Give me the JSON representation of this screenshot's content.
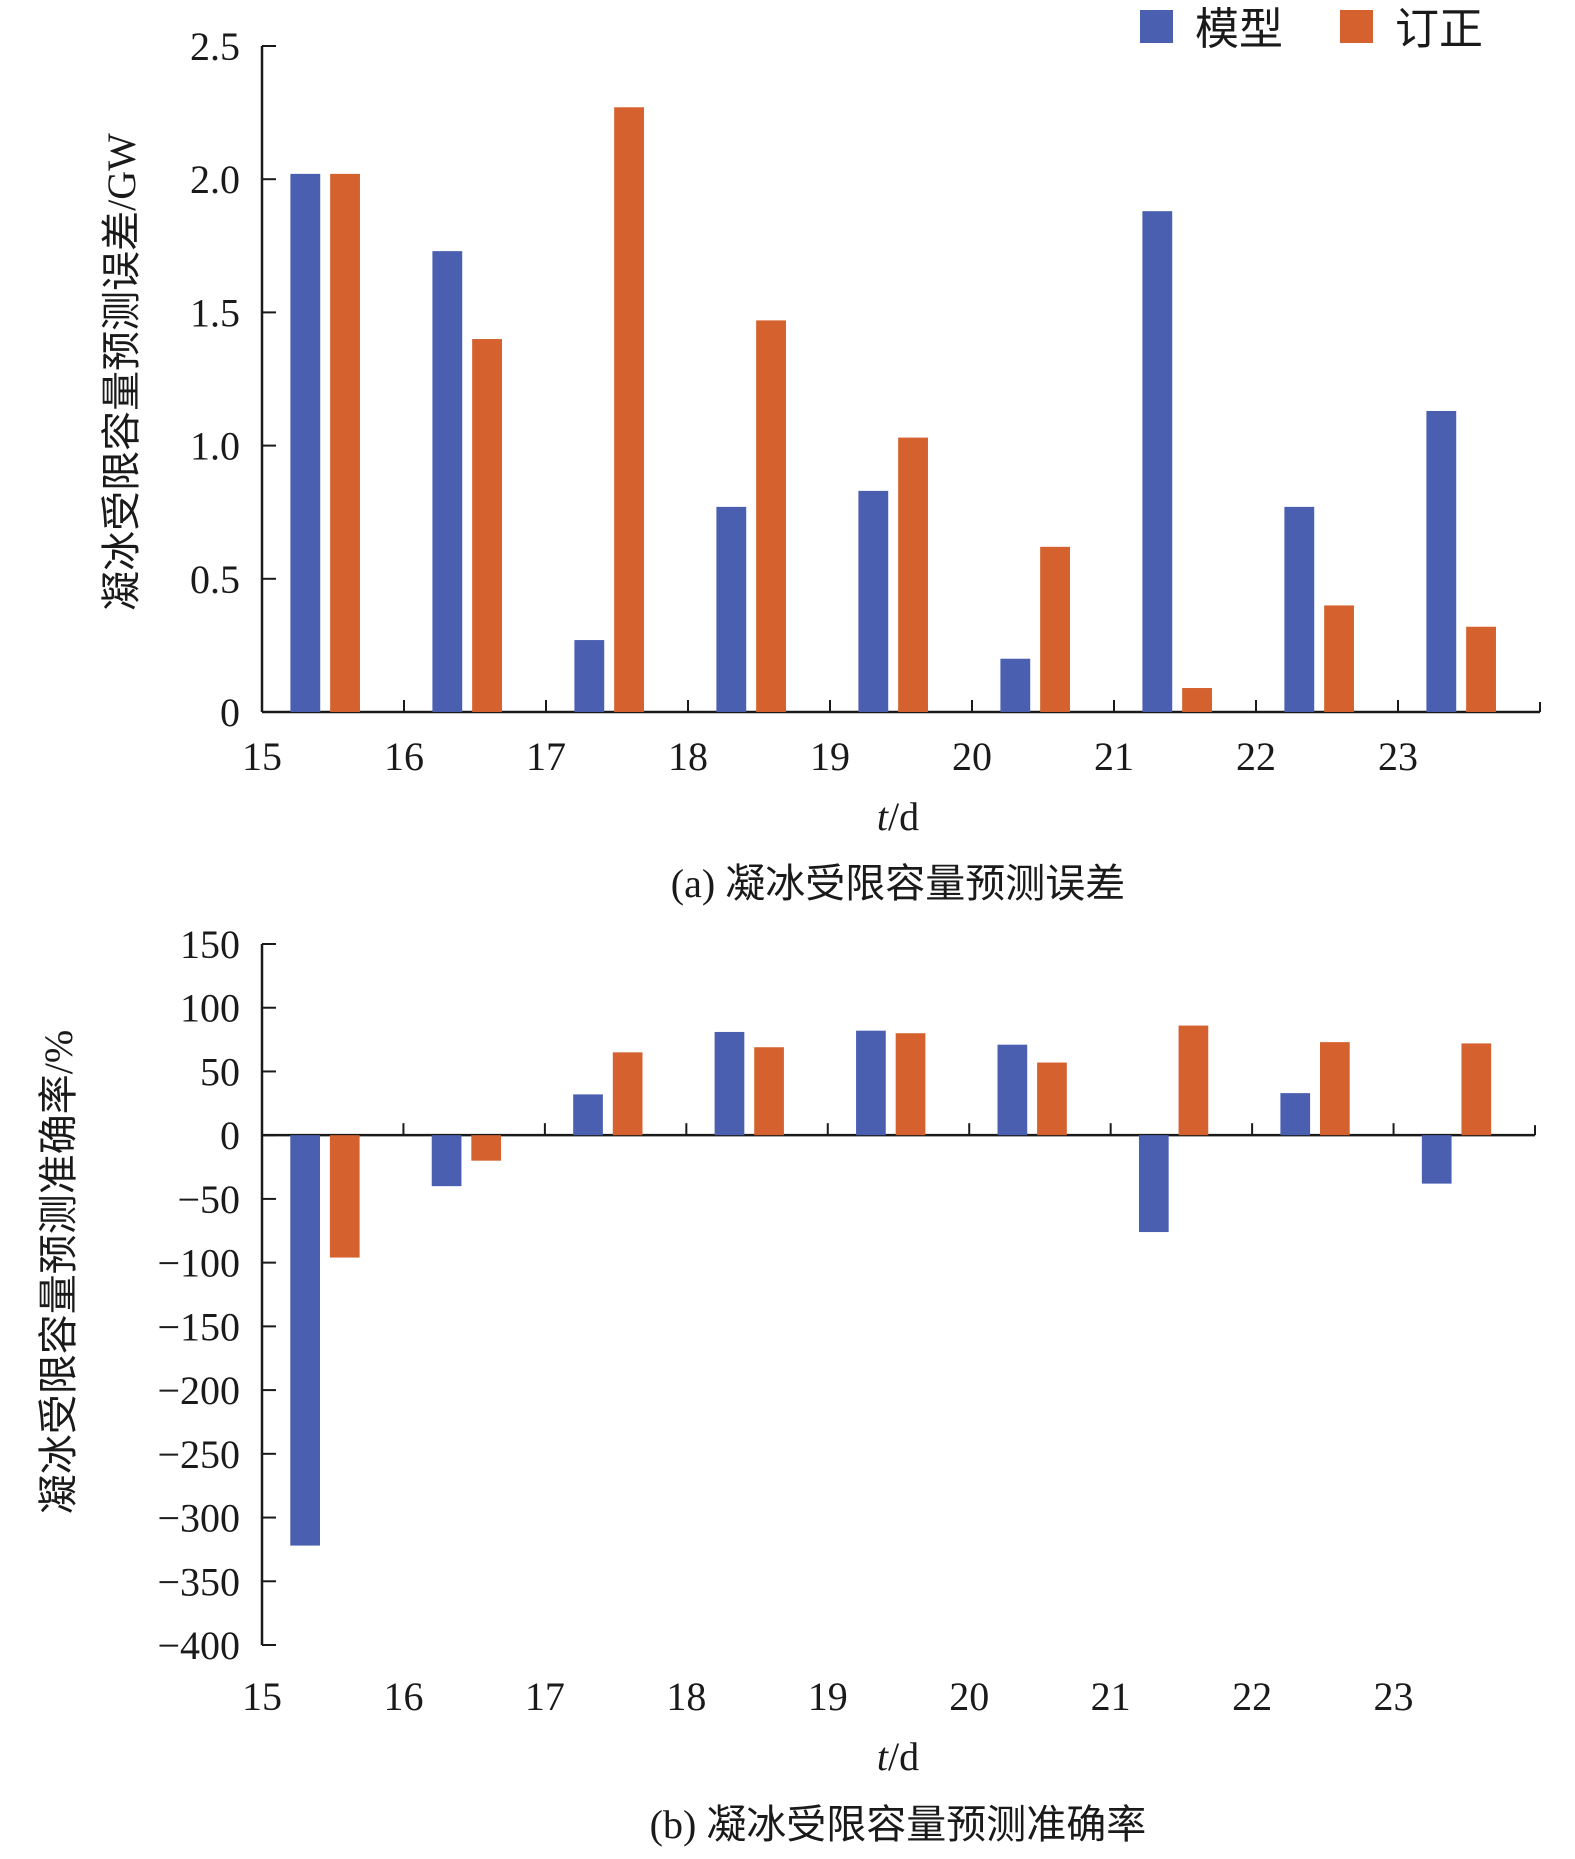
{
  "colors": {
    "model": "#4a5fb0",
    "corrected": "#d4612e",
    "axis": "#1a1a1a"
  },
  "legend": [
    {
      "label": "模型",
      "color_key": "model"
    },
    {
      "label": "订正",
      "color_key": "corrected"
    }
  ],
  "chart_data": [
    {
      "type": "bar",
      "ylabel": "凝冰受限容量预测误差/GW",
      "xlabel_var": "t",
      "xlabel_unit": "/d",
      "caption": "(a) 凝冰受限容量预测误差",
      "xticks": [
        "15",
        "16",
        "17",
        "18",
        "19",
        "20",
        "21",
        "22",
        "23"
      ],
      "xlim": [
        15,
        24
      ],
      "yticks": [
        "0",
        "0.5",
        "1.0",
        "1.5",
        "2.0",
        "2.5"
      ],
      "ylim": [
        0,
        2.5
      ],
      "categories": [
        15,
        16,
        17,
        18,
        19,
        20,
        21,
        22,
        23
      ],
      "series": [
        {
          "name": "模型",
          "values": [
            2.02,
            1.73,
            0.27,
            0.77,
            0.83,
            0.2,
            1.88,
            0.77,
            1.13
          ]
        },
        {
          "name": "订正",
          "values": [
            2.02,
            1.4,
            2.27,
            1.47,
            1.03,
            0.62,
            0.09,
            0.4,
            0.32
          ]
        }
      ]
    },
    {
      "type": "bar",
      "ylabel": "凝冰受限容量预测准确率/%",
      "xlabel_var": "t",
      "xlabel_unit": "/d",
      "caption": "(b) 凝冰受限容量预测准确率",
      "xticks": [
        "15",
        "16",
        "17",
        "18",
        "19",
        "20",
        "21",
        "22",
        "23"
      ],
      "xlim": [
        15,
        24
      ],
      "yticks": [
        "150",
        "100",
        "50",
        "0",
        "−50",
        "−100",
        "−150",
        "−200",
        "−250",
        "−300",
        "−350",
        "−400"
      ],
      "ylim": [
        -400,
        150
      ],
      "categories": [
        15,
        16,
        17,
        18,
        19,
        20,
        21,
        22,
        23
      ],
      "series": [
        {
          "name": "模型",
          "values": [
            -322,
            -40,
            32,
            81,
            82,
            71,
            -76,
            33,
            -38
          ]
        },
        {
          "name": "订正",
          "values": [
            -96,
            -20,
            65,
            69,
            80,
            57,
            86,
            73,
            72
          ]
        }
      ]
    }
  ]
}
